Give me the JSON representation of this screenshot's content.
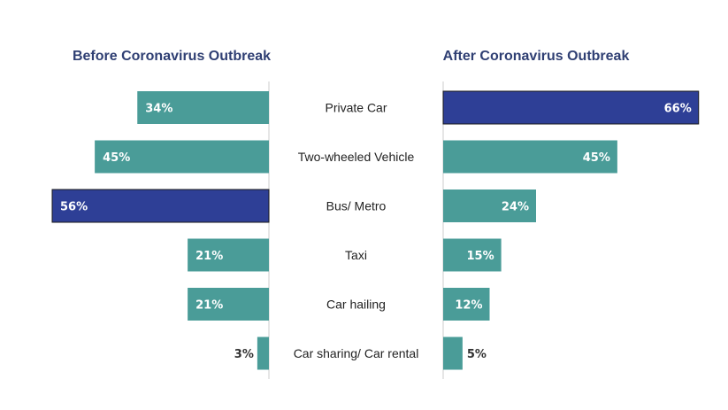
{
  "colors": {
    "teal": "#4a9c98",
    "highlight": "#2e3f96",
    "title": "#2f3f73",
    "divider": "#cccccc"
  },
  "chart_data": {
    "type": "bar",
    "orientation": "horizontal",
    "categories": [
      "Private Car",
      "Two-wheeled Vehicle",
      "Bus/ Metro",
      "Taxi",
      "Car hailing",
      "Car sharing/ Car rental"
    ],
    "series": [
      {
        "title": "Before Coronavirus Outbreak",
        "values": [
          34,
          45,
          56,
          21,
          21,
          3
        ],
        "labels": [
          "34%",
          "45%",
          "56%",
          "21%",
          "21%",
          "3%"
        ],
        "highlight_index": 2
      },
      {
        "title": "After Coronavirus Outbreak",
        "values": [
          66,
          45,
          24,
          15,
          12,
          5
        ],
        "labels": [
          "66%",
          "45%",
          "24%",
          "15%",
          "12%",
          "5%"
        ],
        "highlight_index": 0
      }
    ],
    "unit": "%",
    "grid": false,
    "legend": "none"
  }
}
